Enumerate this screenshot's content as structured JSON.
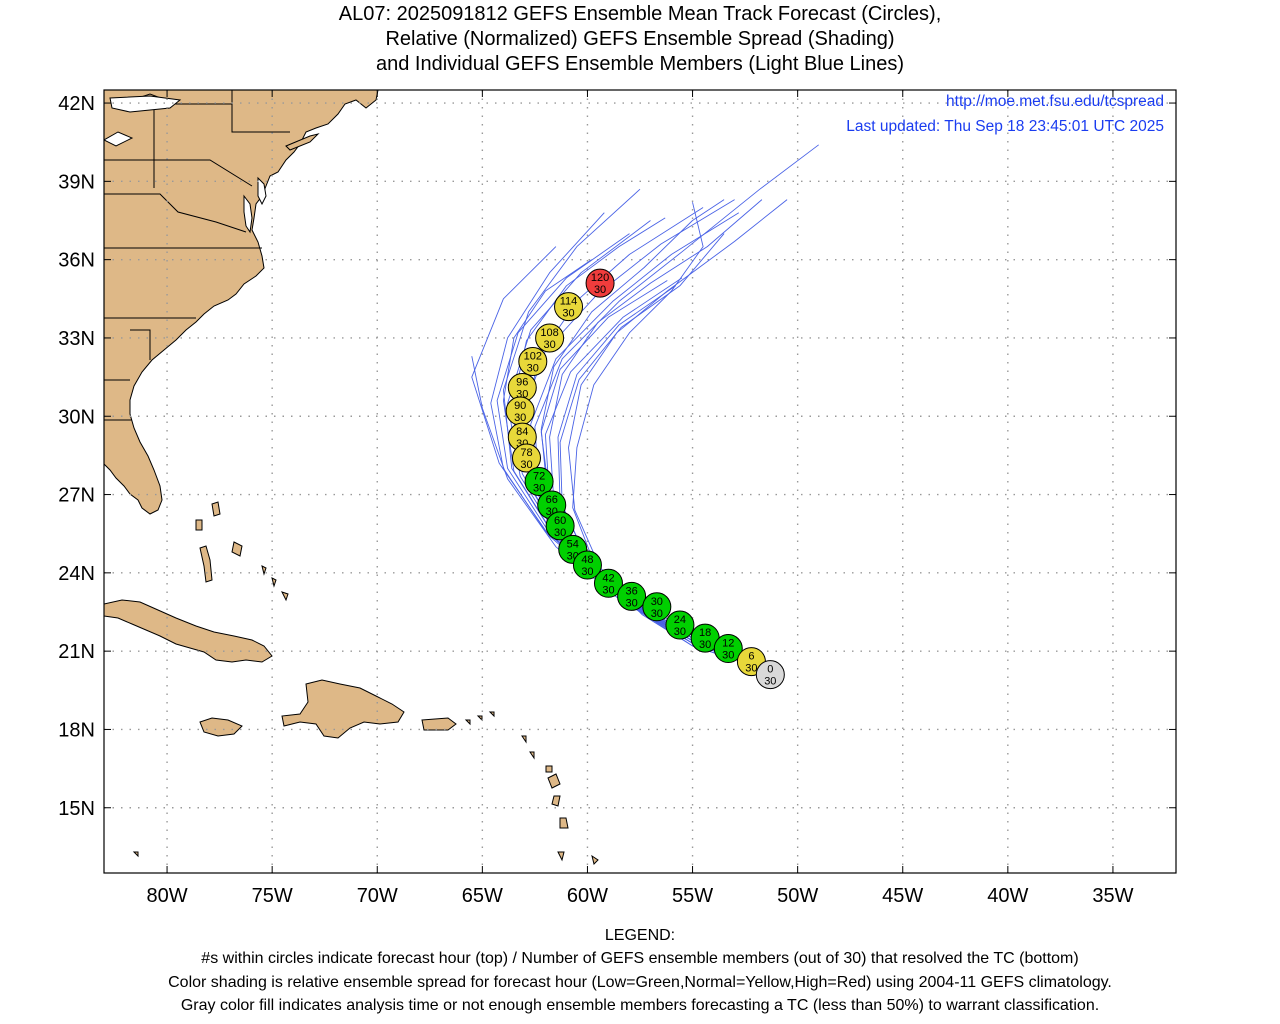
{
  "title": {
    "line1": "AL07: 2025091812 GEFS Ensemble Mean Track Forecast (Circles),",
    "line2": "Relative (Normalized) GEFS Ensemble Spread (Shading)",
    "line3": "and Individual GEFS Ensemble Members (Light Blue Lines)"
  },
  "credit": {
    "url": "http://moe.met.fsu.edu/tcspread",
    "updated": "Last updated: Thu Sep 18 23:45:01 UTC 2025"
  },
  "legend": {
    "heading": "LEGEND:",
    "line1": "#s within circles indicate forecast hour (top) / Number of GEFS ensemble members (out of 30) that resolved the TC (bottom)",
    "line2": "Color shading is relative ensemble spread for forecast hour (Low=Green,Normal=Yellow,High=Red) using 2004-11 GEFS climatology.",
    "line3": "Gray color fill indicates analysis time or not enough ensemble members forecasting a TC (less than 50%) to warrant classification."
  },
  "colors": {
    "land": "#deb887",
    "member_line": "#4a63e6",
    "low": "#00d000",
    "normal": "#e8d83a",
    "high": "#f03c3c",
    "gray": "#d9d9d9",
    "credit_text": "#1a3cf0"
  },
  "map": {
    "lon_range": [
      -83,
      -32
    ],
    "lat_range": [
      12.5,
      42.5
    ],
    "lon_ticks": [
      {
        "value": -80,
        "label": "80W"
      },
      {
        "value": -75,
        "label": "75W"
      },
      {
        "value": -70,
        "label": "70W"
      },
      {
        "value": -65,
        "label": "65W"
      },
      {
        "value": -60,
        "label": "60W"
      },
      {
        "value": -55,
        "label": "55W"
      },
      {
        "value": -50,
        "label": "50W"
      },
      {
        "value": -45,
        "label": "45W"
      },
      {
        "value": -40,
        "label": "40W"
      },
      {
        "value": -35,
        "label": "35W"
      }
    ],
    "lat_ticks": [
      {
        "value": 42,
        "label": "42N"
      },
      {
        "value": 39,
        "label": "39N"
      },
      {
        "value": 36,
        "label": "36N"
      },
      {
        "value": 33,
        "label": "33N"
      },
      {
        "value": 30,
        "label": "30N"
      },
      {
        "value": 27,
        "label": "27N"
      },
      {
        "value": 24,
        "label": "24N"
      },
      {
        "value": 21,
        "label": "21N"
      },
      {
        "value": 18,
        "label": "18N"
      },
      {
        "value": 15,
        "label": "15N"
      }
    ]
  },
  "track": [
    {
      "hour": "0",
      "members": "30",
      "lon": -51.3,
      "lat": 20.1,
      "spread": "gray"
    },
    {
      "hour": "6",
      "members": "30",
      "lon": -52.2,
      "lat": 20.6,
      "spread": "normal"
    },
    {
      "hour": "12",
      "members": "30",
      "lon": -53.3,
      "lat": 21.1,
      "spread": "low"
    },
    {
      "hour": "18",
      "members": "30",
      "lon": -54.4,
      "lat": 21.5,
      "spread": "low"
    },
    {
      "hour": "24",
      "members": "30",
      "lon": -55.6,
      "lat": 22.0,
      "spread": "low"
    },
    {
      "hour": "30",
      "members": "30",
      "lon": -56.7,
      "lat": 22.7,
      "spread": "low"
    },
    {
      "hour": "36",
      "members": "30",
      "lon": -57.9,
      "lat": 23.1,
      "spread": "low"
    },
    {
      "hour": "42",
      "members": "30",
      "lon": -59.0,
      "lat": 23.6,
      "spread": "low"
    },
    {
      "hour": "48",
      "members": "30",
      "lon": -60.0,
      "lat": 24.3,
      "spread": "low"
    },
    {
      "hour": "54",
      "members": "30",
      "lon": -60.7,
      "lat": 24.9,
      "spread": "low"
    },
    {
      "hour": "60",
      "members": "30",
      "lon": -61.3,
      "lat": 25.8,
      "spread": "low"
    },
    {
      "hour": "66",
      "members": "30",
      "lon": -61.7,
      "lat": 26.6,
      "spread": "low"
    },
    {
      "hour": "72",
      "members": "30",
      "lon": -62.3,
      "lat": 27.5,
      "spread": "low"
    },
    {
      "hour": "78",
      "members": "30",
      "lon": -62.9,
      "lat": 28.4,
      "spread": "normal"
    },
    {
      "hour": "84",
      "members": "30",
      "lon": -63.1,
      "lat": 29.2,
      "spread": "normal"
    },
    {
      "hour": "90",
      "members": "30",
      "lon": -63.2,
      "lat": 30.2,
      "spread": "normal"
    },
    {
      "hour": "96",
      "members": "30",
      "lon": -63.1,
      "lat": 31.1,
      "spread": "normal"
    },
    {
      "hour": "102",
      "members": "30",
      "lon": -62.6,
      "lat": 32.1,
      "spread": "normal"
    },
    {
      "hour": "108",
      "members": "30",
      "lon": -61.8,
      "lat": 33.0,
      "spread": "normal"
    },
    {
      "hour": "114",
      "members": "30",
      "lon": -60.9,
      "lat": 34.2,
      "spread": "normal"
    },
    {
      "hour": "120",
      "members": "30",
      "lon": -59.4,
      "lat": 35.1,
      "spread": "high"
    }
  ],
  "members": [
    [
      [
        -51.5,
        20.3
      ],
      [
        -55,
        21.4
      ],
      [
        -58.5,
        23.0
      ],
      [
        -61.5,
        25.0
      ],
      [
        -63.8,
        27.6
      ],
      [
        -65,
        30.3
      ],
      [
        -65.5,
        32.3
      ]
    ],
    [
      [
        -51.5,
        20.3
      ],
      [
        -55,
        21.6
      ],
      [
        -58.6,
        23.2
      ],
      [
        -61.8,
        25.4
      ],
      [
        -64.2,
        28.2
      ],
      [
        -65.5,
        31.5
      ],
      [
        -64.0,
        34.5
      ],
      [
        -61.5,
        36.5
      ]
    ],
    [
      [
        -51.5,
        20.3
      ],
      [
        -55,
        21.7
      ],
      [
        -58.8,
        23.4
      ],
      [
        -62.0,
        25.6
      ],
      [
        -64.0,
        28.0
      ],
      [
        -64.6,
        30.5
      ],
      [
        -63.8,
        33.0
      ],
      [
        -61.8,
        35.5
      ],
      [
        -59.2,
        37.8
      ]
    ],
    [
      [
        -51.5,
        20.3
      ],
      [
        -55,
        21.5
      ],
      [
        -58.4,
        23.1
      ],
      [
        -61.5,
        25.3
      ],
      [
        -63.6,
        28.0
      ],
      [
        -64.0,
        31.0
      ],
      [
        -62.8,
        34.0
      ],
      [
        -60.5,
        36.5
      ],
      [
        -57.5,
        38.7
      ]
    ],
    [
      [
        -51.5,
        20.3
      ],
      [
        -55,
        21.5
      ],
      [
        -58.3,
        23.0
      ],
      [
        -61.2,
        25.1
      ],
      [
        -63.2,
        27.7
      ],
      [
        -63.8,
        30.5
      ],
      [
        -62.7,
        33.3
      ],
      [
        -60.3,
        35.5
      ],
      [
        -57.0,
        37.5
      ]
    ],
    [
      [
        -51.5,
        20.3
      ],
      [
        -55,
        21.6
      ],
      [
        -58.5,
        23.2
      ],
      [
        -61.7,
        25.4
      ],
      [
        -63.8,
        28.0
      ],
      [
        -64.3,
        30.6
      ],
      [
        -63.3,
        33.2
      ],
      [
        -61.0,
        35.3
      ],
      [
        -58.0,
        37.0
      ]
    ],
    [
      [
        -51.5,
        20.3
      ],
      [
        -55,
        21.5
      ],
      [
        -58.2,
        23.0
      ],
      [
        -61.0,
        24.9
      ],
      [
        -62.7,
        27.3
      ],
      [
        -63.2,
        29.9
      ],
      [
        -62.0,
        32.5
      ],
      [
        -59.5,
        34.7
      ],
      [
        -56.5,
        36.6
      ],
      [
        -53.0,
        38.3
      ]
    ],
    [
      [
        -51.5,
        20.3
      ],
      [
        -55,
        21.4
      ],
      [
        -58.0,
        22.8
      ],
      [
        -60.7,
        24.7
      ],
      [
        -62.3,
        27.0
      ],
      [
        -62.5,
        29.6
      ],
      [
        -61.2,
        32.2
      ],
      [
        -58.5,
        34.4
      ],
      [
        -55.5,
        36.3
      ],
      [
        -51.8,
        38.7
      ],
      [
        -49.0,
        40.4
      ]
    ],
    [
      [
        -51.5,
        20.3
      ],
      [
        -55,
        21.4
      ],
      [
        -58.0,
        22.9
      ],
      [
        -60.6,
        24.8
      ],
      [
        -62.2,
        27.1
      ],
      [
        -62.7,
        29.7
      ],
      [
        -61.5,
        32.2
      ],
      [
        -58.8,
        34.4
      ],
      [
        -56.0,
        36.2
      ],
      [
        -52.8,
        37.8
      ]
    ],
    [
      [
        -51.5,
        20.3
      ],
      [
        -55,
        21.3
      ],
      [
        -57.8,
        22.7
      ],
      [
        -60.3,
        24.5
      ],
      [
        -61.8,
        26.8
      ],
      [
        -62.0,
        29.3
      ],
      [
        -60.8,
        31.7
      ],
      [
        -58.3,
        33.8
      ],
      [
        -55.5,
        35.3
      ]
    ],
    [
      [
        -51.5,
        20.3
      ],
      [
        -55,
        21.3
      ],
      [
        -57.7,
        22.6
      ],
      [
        -60.2,
        24.5
      ],
      [
        -61.6,
        26.8
      ],
      [
        -61.8,
        29.2
      ],
      [
        -61.2,
        31.6
      ],
      [
        -59.5,
        33.6
      ],
      [
        -57.0,
        35.1
      ],
      [
        -54.3,
        36.5
      ],
      [
        -51.7,
        38.3
      ]
    ],
    [
      [
        -51.5,
        20.3
      ],
      [
        -55,
        21.4
      ],
      [
        -57.9,
        22.8
      ],
      [
        -60.3,
        24.6
      ],
      [
        -61.8,
        26.9
      ],
      [
        -62.2,
        29.4
      ],
      [
        -61.3,
        31.8
      ],
      [
        -59.0,
        33.8
      ],
      [
        -56.2,
        35.2
      ]
    ],
    [
      [
        -51.5,
        20.3
      ],
      [
        -55,
        21.3
      ],
      [
        -57.5,
        22.5
      ],
      [
        -59.9,
        24.3
      ],
      [
        -61.2,
        26.6
      ],
      [
        -61.3,
        29.0
      ],
      [
        -60.4,
        31.4
      ],
      [
        -58.4,
        33.4
      ],
      [
        -55.6,
        35.0
      ],
      [
        -53.5,
        37.0
      ]
    ],
    [
      [
        -51.5,
        20.3
      ],
      [
        -55,
        21.2
      ],
      [
        -57.4,
        22.4
      ],
      [
        -59.6,
        24.2
      ],
      [
        -60.7,
        26.5
      ],
      [
        -60.5,
        28.8
      ],
      [
        -59.7,
        31.2
      ],
      [
        -58.0,
        33.2
      ],
      [
        -56.0,
        34.8
      ],
      [
        -54.5,
        36.5
      ],
      [
        -55.0,
        38.2
      ]
    ],
    [
      [
        -51.5,
        20.3
      ],
      [
        -55,
        21.4
      ],
      [
        -58.1,
        22.9
      ],
      [
        -60.8,
        24.8
      ],
      [
        -62.5,
        27.2
      ],
      [
        -63.0,
        29.8
      ],
      [
        -62.3,
        32.3
      ],
      [
        -60.4,
        34.5
      ],
      [
        -58.0,
        36.2
      ],
      [
        -54.5,
        38.0
      ]
    ],
    [
      [
        -51.5,
        20.3
      ],
      [
        -55,
        21.3
      ],
      [
        -57.6,
        22.6
      ],
      [
        -60.0,
        24.5
      ],
      [
        -61.3,
        26.7
      ],
      [
        -61.4,
        29.2
      ],
      [
        -60.5,
        31.6
      ],
      [
        -58.5,
        33.5
      ],
      [
        -55.8,
        35.0
      ]
    ],
    [
      [
        -51.5,
        20.3
      ],
      [
        -55,
        21.5
      ],
      [
        -58.3,
        23.1
      ],
      [
        -61.2,
        25.2
      ],
      [
        -63.1,
        27.8
      ],
      [
        -63.6,
        30.3
      ],
      [
        -62.9,
        32.9
      ],
      [
        -61.0,
        35.0
      ],
      [
        -58.5,
        36.5
      ],
      [
        -56.3,
        37.6
      ]
    ],
    [
      [
        -51.5,
        20.3
      ],
      [
        -55,
        21.5
      ],
      [
        -58.4,
        23.1
      ],
      [
        -61.4,
        25.2
      ],
      [
        -63.5,
        27.9
      ],
      [
        -64.0,
        30.6
      ],
      [
        -63.5,
        33.0
      ],
      [
        -62.0,
        34.8
      ],
      [
        -59.8,
        36.0
      ]
    ],
    [
      [
        -51.5,
        20.3
      ],
      [
        -55,
        21.2
      ],
      [
        -57.3,
        22.4
      ],
      [
        -59.4,
        24.2
      ],
      [
        -60.6,
        26.4
      ],
      [
        -60.9,
        28.8
      ],
      [
        -60.3,
        31.2
      ],
      [
        -58.6,
        33.2
      ],
      [
        -56.2,
        34.8
      ],
      [
        -53.0,
        36.7
      ],
      [
        -50.5,
        38.3
      ]
    ],
    [
      [
        -51.5,
        20.3
      ],
      [
        -55,
        21.4
      ],
      [
        -58.0,
        22.9
      ],
      [
        -60.5,
        24.8
      ],
      [
        -61.9,
        27.0
      ],
      [
        -62.2,
        29.5
      ],
      [
        -61.6,
        31.9
      ],
      [
        -59.8,
        34.0
      ],
      [
        -57.3,
        35.7
      ],
      [
        -55.0,
        37.5
      ],
      [
        -53.5,
        38.3
      ]
    ]
  ]
}
